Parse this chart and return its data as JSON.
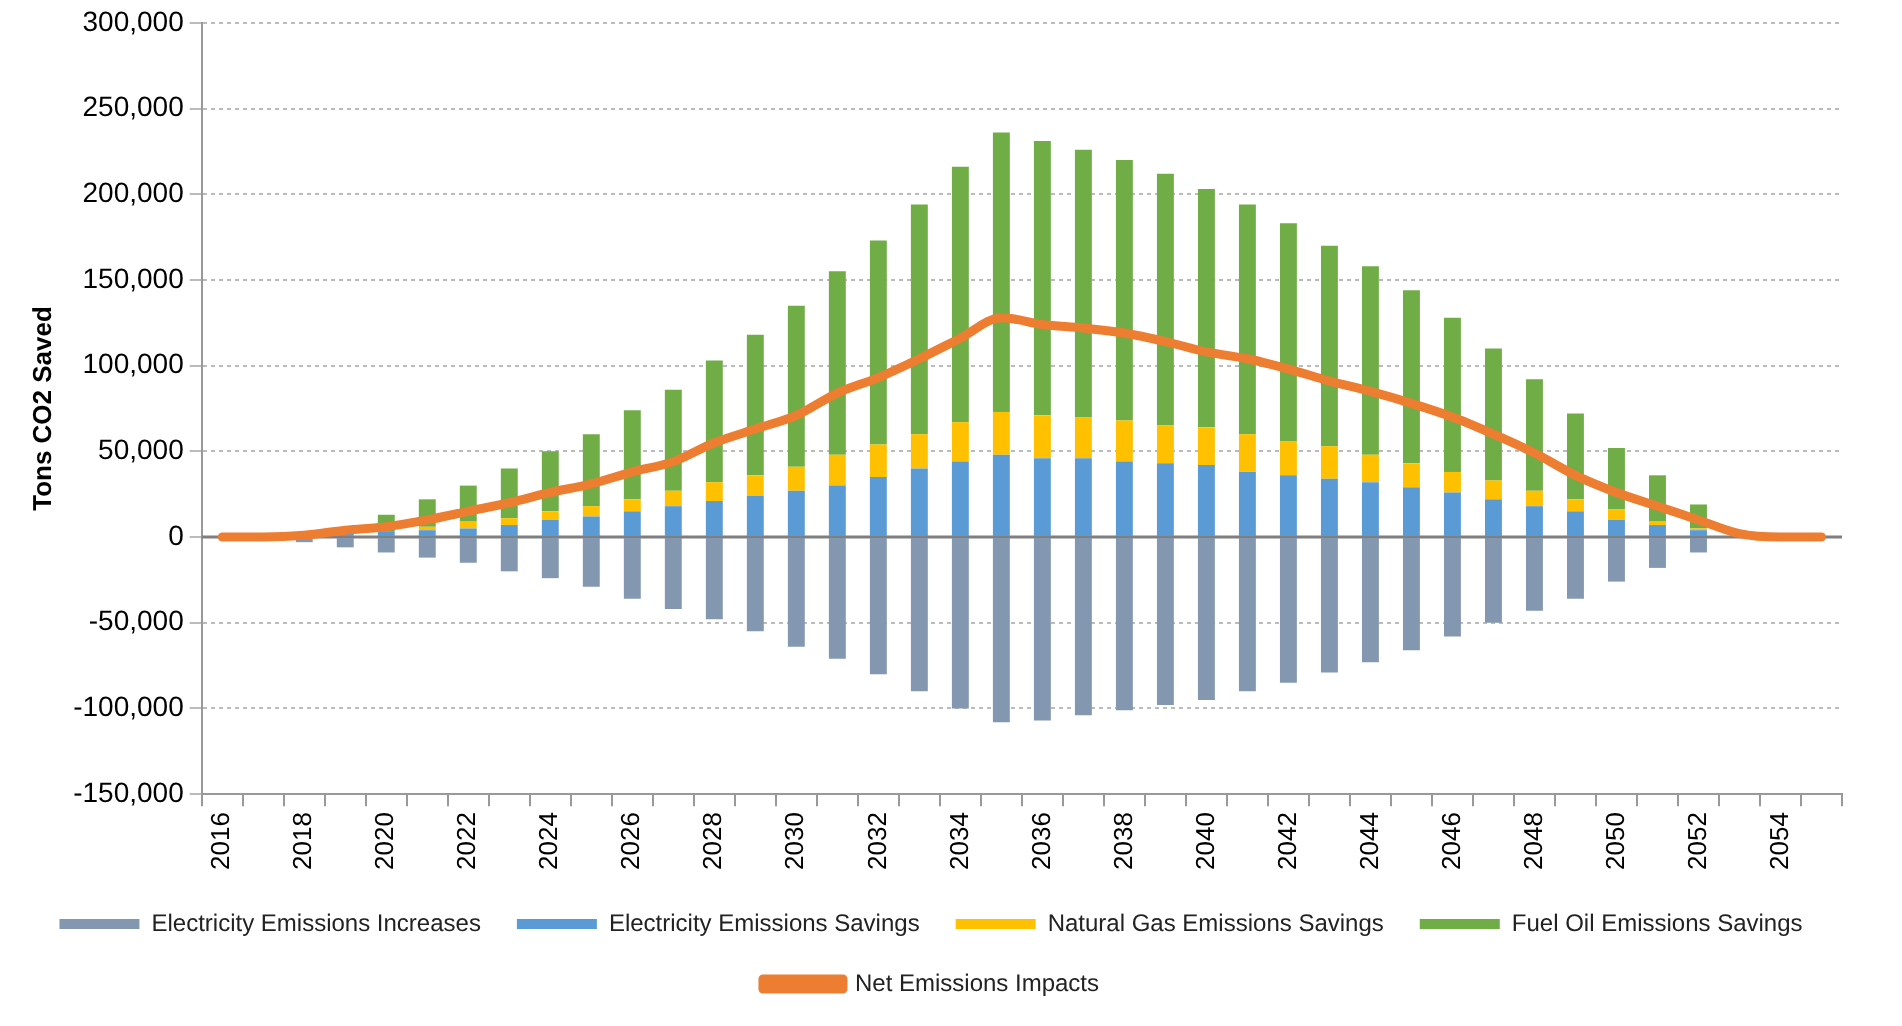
{
  "chart_data": {
    "type": "bar",
    "stacked": true,
    "ylabel": "Tons CO2 Saved",
    "categories": [
      "2016",
      null,
      "2018",
      null,
      "2020",
      null,
      "2022",
      null,
      "2024",
      null,
      "2026",
      null,
      "2028",
      null,
      "2030",
      null,
      "2032",
      null,
      "2034",
      null,
      "2036",
      null,
      "2038",
      null,
      "2040",
      null,
      "2042",
      null,
      "2044",
      null,
      "2046",
      null,
      "2048",
      null,
      "2050",
      null,
      "2052",
      null,
      "2054",
      null
    ],
    "series": [
      {
        "name": "Electricity Emissions Increases",
        "color": "#8497b0",
        "values": [
          null,
          null,
          -3000,
          -6000,
          -9000,
          -12000,
          -15000,
          -20000,
          -24000,
          -29000,
          -36000,
          -42000,
          -48000,
          -55000,
          -64000,
          -71000,
          -80000,
          -90000,
          -100000,
          -108000,
          -107000,
          -104000,
          -101000,
          -98000,
          -95000,
          -90000,
          -85000,
          -79000,
          -73000,
          -66000,
          -58000,
          -50000,
          -43000,
          -36000,
          -26000,
          -18000,
          -9000,
          null,
          null,
          null
        ]
      },
      {
        "name": "Electricity Emissions Savings",
        "color": "#5b9bd5",
        "values": [
          null,
          null,
          1000,
          2000,
          3000,
          4000,
          5000,
          7000,
          10000,
          12000,
          15000,
          18000,
          21000,
          24000,
          27000,
          30000,
          35000,
          40000,
          44000,
          48000,
          46000,
          46000,
          44000,
          43000,
          42000,
          38000,
          36000,
          34000,
          32000,
          29000,
          26000,
          22000,
          18000,
          15000,
          10000,
          7000,
          4000,
          null,
          null,
          null
        ]
      },
      {
        "name": "Natural Gas Emissions Savings",
        "color": "#ffc000",
        "values": [
          null,
          null,
          1000,
          null,
          null,
          2000,
          4000,
          4000,
          5000,
          6000,
          7000,
          9000,
          11000,
          12000,
          14000,
          18000,
          19000,
          20000,
          23000,
          25000,
          25000,
          24000,
          24000,
          22000,
          22000,
          22000,
          20000,
          19000,
          16000,
          14000,
          12000,
          11000,
          9000,
          7000,
          6000,
          2000,
          1000,
          null,
          null,
          null
        ]
      },
      {
        "name": "Fuel Oil Emissions Savings",
        "color": "#70ad47",
        "values": [
          null,
          null,
          null,
          null,
          10000,
          16000,
          21000,
          29000,
          35000,
          42000,
          52000,
          59000,
          71000,
          82000,
          94000,
          107000,
          119000,
          134000,
          149000,
          163000,
          160000,
          156000,
          152000,
          147000,
          139000,
          134000,
          127000,
          117000,
          110000,
          101000,
          90000,
          77000,
          65000,
          50000,
          36000,
          27000,
          14000,
          null,
          null,
          null
        ]
      },
      {
        "name": "Net Emissions Impacts",
        "type": "line",
        "color": "#ed7d31",
        "values": [
          0,
          0,
          1000,
          4000,
          6000,
          10000,
          15000,
          20000,
          26000,
          31000,
          38000,
          44000,
          55000,
          63000,
          71000,
          84000,
          93000,
          104000,
          116000,
          128000,
          124000,
          122000,
          119000,
          114000,
          108000,
          104000,
          98000,
          91000,
          85000,
          78000,
          70000,
          60000,
          49000,
          36000,
          26000,
          18000,
          10000,
          2000,
          0,
          0
        ]
      }
    ],
    "ylim": [
      -150000,
      300000
    ],
    "yticks": [
      {
        "value": -150000,
        "label": "-150,000"
      },
      {
        "value": -100000,
        "label": "-100,000"
      },
      {
        "value": -50000,
        "label": "-50,000"
      },
      0,
      {
        "value": 50000,
        "label": "50,000"
      },
      {
        "value": 100000,
        "label": "100,000"
      },
      {
        "value": 150000,
        "label": "150,000"
      },
      {
        "value": 200000,
        "label": "200,000"
      },
      {
        "value": 250000,
        "label": "250,000"
      },
      {
        "value": 300000,
        "label": "300,000"
      }
    ],
    "ref_lines": [
      {
        "axis": "y",
        "value": 0,
        "color": "#7f7f7f"
      }
    ],
    "grid": "y",
    "legend": "bottom",
    "marker": "none",
    "line_style": "solid"
  }
}
